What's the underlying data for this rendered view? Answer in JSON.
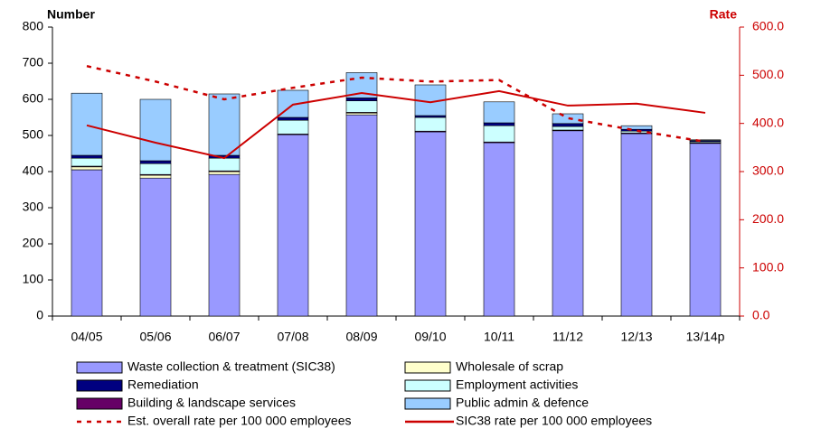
{
  "chart_data": {
    "type": "bar",
    "stacked": true,
    "y_label": "Number",
    "y2_label": "Rate",
    "categories": [
      "04/05",
      "05/06",
      "06/07",
      "07/08",
      "08/09",
      "09/10",
      "10/11",
      "11/12",
      "12/13",
      "13/14p"
    ],
    "ylim": [
      0,
      800
    ],
    "yticks": [
      0,
      100,
      200,
      300,
      400,
      500,
      600,
      700,
      800
    ],
    "y2lim": [
      0,
      600
    ],
    "y2ticks": [
      {
        "value": 0,
        "label": "0.0"
      },
      {
        "value": 100,
        "label": "100.0"
      },
      {
        "value": 200,
        "label": "200.0"
      },
      {
        "value": 300,
        "label": "300.0"
      },
      {
        "value": 400,
        "label": "400.0"
      },
      {
        "value": 500,
        "label": "500.0"
      },
      {
        "value": 600,
        "label": "600.0"
      }
    ],
    "y2_color": "#cc0000",
    "grid": false,
    "series": [
      {
        "name": "Waste collection & treatment (SIC38)",
        "color": "#9999ff",
        "values": [
          405,
          382,
          392,
          502,
          557,
          510,
          480,
          513,
          505,
          478
        ]
      },
      {
        "name": "Wholesale of scrap",
        "color": "#ffffcc",
        "values": [
          8,
          8,
          8,
          0,
          5,
          0,
          0,
          0,
          0,
          0
        ]
      },
      {
        "name": "Building & landscape services",
        "color": "#660066",
        "values": [
          2,
          2,
          2,
          2,
          2,
          2,
          2,
          2,
          2,
          2
        ]
      },
      {
        "name": "Employment activities",
        "color": "#ccffff",
        "values": [
          22,
          30,
          35,
          38,
          32,
          38,
          45,
          10,
          5,
          3
        ]
      },
      {
        "name": "Remediation",
        "color": "#000080",
        "values": [
          8,
          8,
          8,
          8,
          8,
          5,
          8,
          8,
          5,
          3
        ]
      },
      {
        "name": "Public admin & defence",
        "color": "#99ccff",
        "values": [
          172,
          170,
          170,
          75,
          70,
          85,
          58,
          27,
          10,
          2
        ]
      },
      {
        "name": "Est. overall rate per 100 000 employees",
        "type": "line",
        "style": "dashed",
        "axis": "y2",
        "color": "#cc0000",
        "values": [
          519,
          487,
          450,
          474,
          495,
          487,
          490,
          411,
          385,
          362
        ]
      },
      {
        "name": "SIC38 rate per 100 000 employees",
        "type": "line",
        "style": "solid",
        "axis": "y2",
        "color": "#cc0000",
        "values": [
          396,
          360,
          328,
          439,
          463,
          444,
          467,
          437,
          441,
          422
        ]
      }
    ]
  }
}
